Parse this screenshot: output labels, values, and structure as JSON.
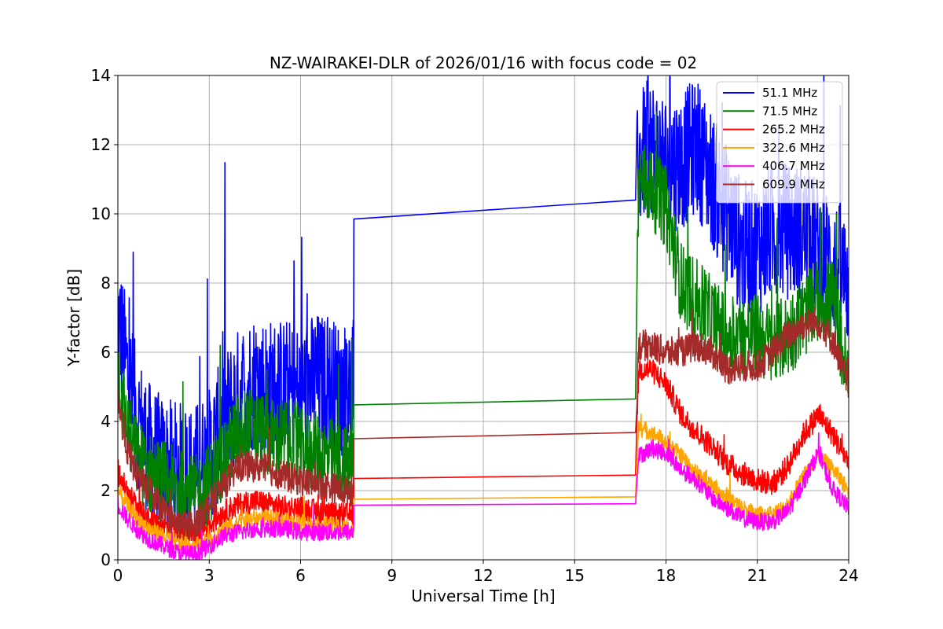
{
  "chart_data": {
    "type": "line",
    "title": "NZ-WAIRAKEI-DLR of 2026/01/16 with focus code = 02",
    "xlabel": "Universal Time [h]",
    "ylabel": "Y-factor [dB]",
    "xlim": [
      0,
      24
    ],
    "ylim": [
      0,
      14
    ],
    "xticks": [
      0,
      3,
      6,
      9,
      12,
      15,
      18,
      21,
      24
    ],
    "yticks": [
      0,
      2,
      4,
      6,
      8,
      10,
      12,
      14
    ],
    "grid": true,
    "legend_position": "top-right",
    "series": [
      {
        "name": "51.1 MHz",
        "legend_label": " 51.1 MHz",
        "color": "#0000ff",
        "noise": 2.0,
        "x": [
          0,
          0.3,
          0.6,
          1.0,
          1.5,
          2.0,
          2.5,
          3.0,
          3.5,
          4.0,
          4.5,
          5.0,
          5.5,
          6.0,
          6.5,
          7.0,
          7.5,
          7.75,
          17.0,
          17.1,
          17.5,
          18.0,
          18.5,
          19.0,
          19.5,
          20.0,
          20.5,
          21.0,
          21.5,
          22.0,
          22.5,
          23.0,
          23.5,
          24.0
        ],
        "y": [
          7.0,
          5.5,
          4.2,
          3.2,
          2.7,
          2.6,
          2.5,
          3.0,
          4.0,
          4.8,
          5.2,
          5.0,
          5.0,
          4.8,
          5.2,
          5.0,
          4.9,
          5.0,
          10.4,
          11.5,
          12.0,
          11.5,
          11.5,
          12.0,
          11.0,
          10.0,
          9.0,
          9.0,
          9.5,
          9.5,
          9.5,
          9.0,
          8.5,
          8.0
        ],
        "gap": {
          "from": 7.75,
          "to": 17.0,
          "y_from": 9.85,
          "y_to": 10.4
        }
      },
      {
        "name": "71.5 MHz",
        "legend_label": " 71.5 MHz",
        "color": "#008000",
        "noise": 1.2,
        "x": [
          0,
          0.3,
          0.6,
          1.0,
          1.5,
          2.0,
          2.5,
          3.0,
          3.5,
          4.0,
          4.5,
          5.0,
          5.5,
          6.0,
          6.5,
          7.0,
          7.5,
          7.75,
          17.0,
          17.1,
          17.5,
          18.0,
          18.5,
          19.0,
          19.5,
          20.0,
          20.5,
          21.0,
          21.5,
          22.0,
          22.5,
          23.0,
          23.5,
          24.0
        ],
        "y": [
          5.5,
          3.8,
          3.0,
          2.5,
          2.3,
          2.0,
          1.8,
          2.2,
          3.0,
          3.8,
          3.8,
          3.5,
          3.5,
          3.2,
          3.1,
          2.9,
          2.8,
          2.7,
          4.65,
          11.0,
          10.8,
          10.2,
          8.0,
          7.5,
          7.0,
          6.5,
          6.5,
          6.5,
          6.2,
          6.5,
          7.0,
          7.5,
          7.5,
          5.0
        ],
        "gap": {
          "from": 7.75,
          "to": 17.0,
          "y_from": 4.48,
          "y_to": 4.65
        }
      },
      {
        "name": "265.2 MHz",
        "legend_label": "265.2 MHz",
        "color": "#ff0000",
        "noise": 0.35,
        "x": [
          0,
          0.3,
          0.6,
          1.0,
          1.5,
          2.0,
          2.5,
          3.0,
          3.5,
          4.0,
          4.5,
          5.0,
          5.5,
          6.0,
          6.5,
          7.0,
          7.5,
          7.75,
          17.0,
          17.1,
          17.5,
          18.0,
          18.5,
          19.0,
          19.5,
          20.0,
          20.5,
          21.0,
          21.5,
          22.0,
          22.5,
          23.0,
          23.5,
          24.0
        ],
        "y": [
          2.5,
          2.0,
          1.5,
          1.2,
          1.0,
          0.9,
          0.8,
          1.0,
          1.4,
          1.6,
          1.7,
          1.6,
          1.5,
          1.5,
          1.4,
          1.3,
          1.3,
          1.3,
          2.45,
          5.5,
          5.5,
          5.1,
          4.2,
          3.7,
          3.3,
          2.8,
          2.5,
          2.3,
          2.2,
          2.7,
          3.6,
          4.2,
          3.6,
          2.8
        ],
        "gap": {
          "from": 7.75,
          "to": 17.0,
          "y_from": 2.35,
          "y_to": 2.45
        }
      },
      {
        "name": "322.6 MHz",
        "legend_label": "322.6 MHz",
        "color": "#ffa500",
        "noise": 0.25,
        "x": [
          0,
          0.3,
          0.6,
          1.0,
          1.5,
          2.0,
          2.5,
          3.0,
          3.5,
          4.0,
          4.5,
          5.0,
          5.5,
          6.0,
          6.5,
          7.0,
          7.5,
          7.75,
          17.0,
          17.1,
          17.5,
          18.0,
          18.5,
          19.0,
          19.5,
          20.0,
          20.5,
          21.0,
          21.5,
          22.0,
          22.5,
          23.0,
          23.5,
          24.0
        ],
        "y": [
          2.0,
          1.6,
          1.2,
          0.9,
          0.7,
          0.5,
          0.4,
          0.6,
          0.9,
          1.1,
          1.2,
          1.2,
          1.1,
          1.1,
          1.0,
          1.0,
          0.9,
          0.9,
          1.82,
          3.8,
          3.7,
          3.4,
          3.0,
          2.5,
          2.2,
          1.8,
          1.5,
          1.3,
          1.3,
          1.6,
          2.4,
          3.0,
          2.6,
          2.0
        ],
        "gap": {
          "from": 7.75,
          "to": 17.0,
          "y_from": 1.75,
          "y_to": 1.82
        }
      },
      {
        "name": "406.7 MHz",
        "legend_label": "406.7 MHz",
        "color": "#ff00ff",
        "noise": 0.25,
        "x": [
          0,
          0.3,
          0.6,
          1.0,
          1.5,
          2.0,
          2.5,
          3.0,
          3.5,
          4.0,
          4.5,
          5.0,
          5.5,
          6.0,
          6.5,
          7.0,
          7.5,
          7.75,
          17.0,
          17.1,
          17.5,
          18.0,
          18.5,
          19.0,
          19.5,
          20.0,
          20.5,
          21.0,
          21.5,
          22.0,
          22.5,
          23.0,
          23.5,
          24.0
        ],
        "y": [
          1.6,
          1.2,
          0.9,
          0.6,
          0.4,
          0.2,
          0.15,
          0.4,
          0.7,
          0.8,
          0.9,
          0.9,
          0.9,
          0.8,
          0.8,
          0.8,
          0.8,
          0.8,
          1.62,
          3.0,
          3.2,
          3.1,
          2.6,
          2.3,
          1.8,
          1.5,
          1.2,
          1.1,
          1.1,
          1.4,
          2.2,
          3.1,
          2.0,
          1.5
        ],
        "gap": {
          "from": 7.75,
          "to": 17.0,
          "y_from": 1.58,
          "y_to": 1.62
        }
      },
      {
        "name": "609.9 MHz",
        "legend_label": "609.9 MHz",
        "color": "#a52a2a",
        "noise": 0.45,
        "x": [
          0,
          0.3,
          0.6,
          1.0,
          1.5,
          2.0,
          2.5,
          3.0,
          3.5,
          4.0,
          4.5,
          5.0,
          5.5,
          6.0,
          6.5,
          7.0,
          7.5,
          7.75,
          17.0,
          17.1,
          17.5,
          18.0,
          18.5,
          19.0,
          19.5,
          20.0,
          20.5,
          21.0,
          21.5,
          22.0,
          22.5,
          23.0,
          23.5,
          24.0
        ],
        "y": [
          4.5,
          3.2,
          2.5,
          2.0,
          1.4,
          1.0,
          1.0,
          1.6,
          2.2,
          2.7,
          2.7,
          2.6,
          2.4,
          2.3,
          2.2,
          2.1,
          2.0,
          2.0,
          3.68,
          6.2,
          6.2,
          6.0,
          6.0,
          6.2,
          6.0,
          5.5,
          5.6,
          5.6,
          6.0,
          6.5,
          6.8,
          6.9,
          6.3,
          5.0
        ],
        "gap": {
          "from": 7.75,
          "to": 17.0,
          "y_from": 3.5,
          "y_to": 3.68
        }
      }
    ]
  }
}
